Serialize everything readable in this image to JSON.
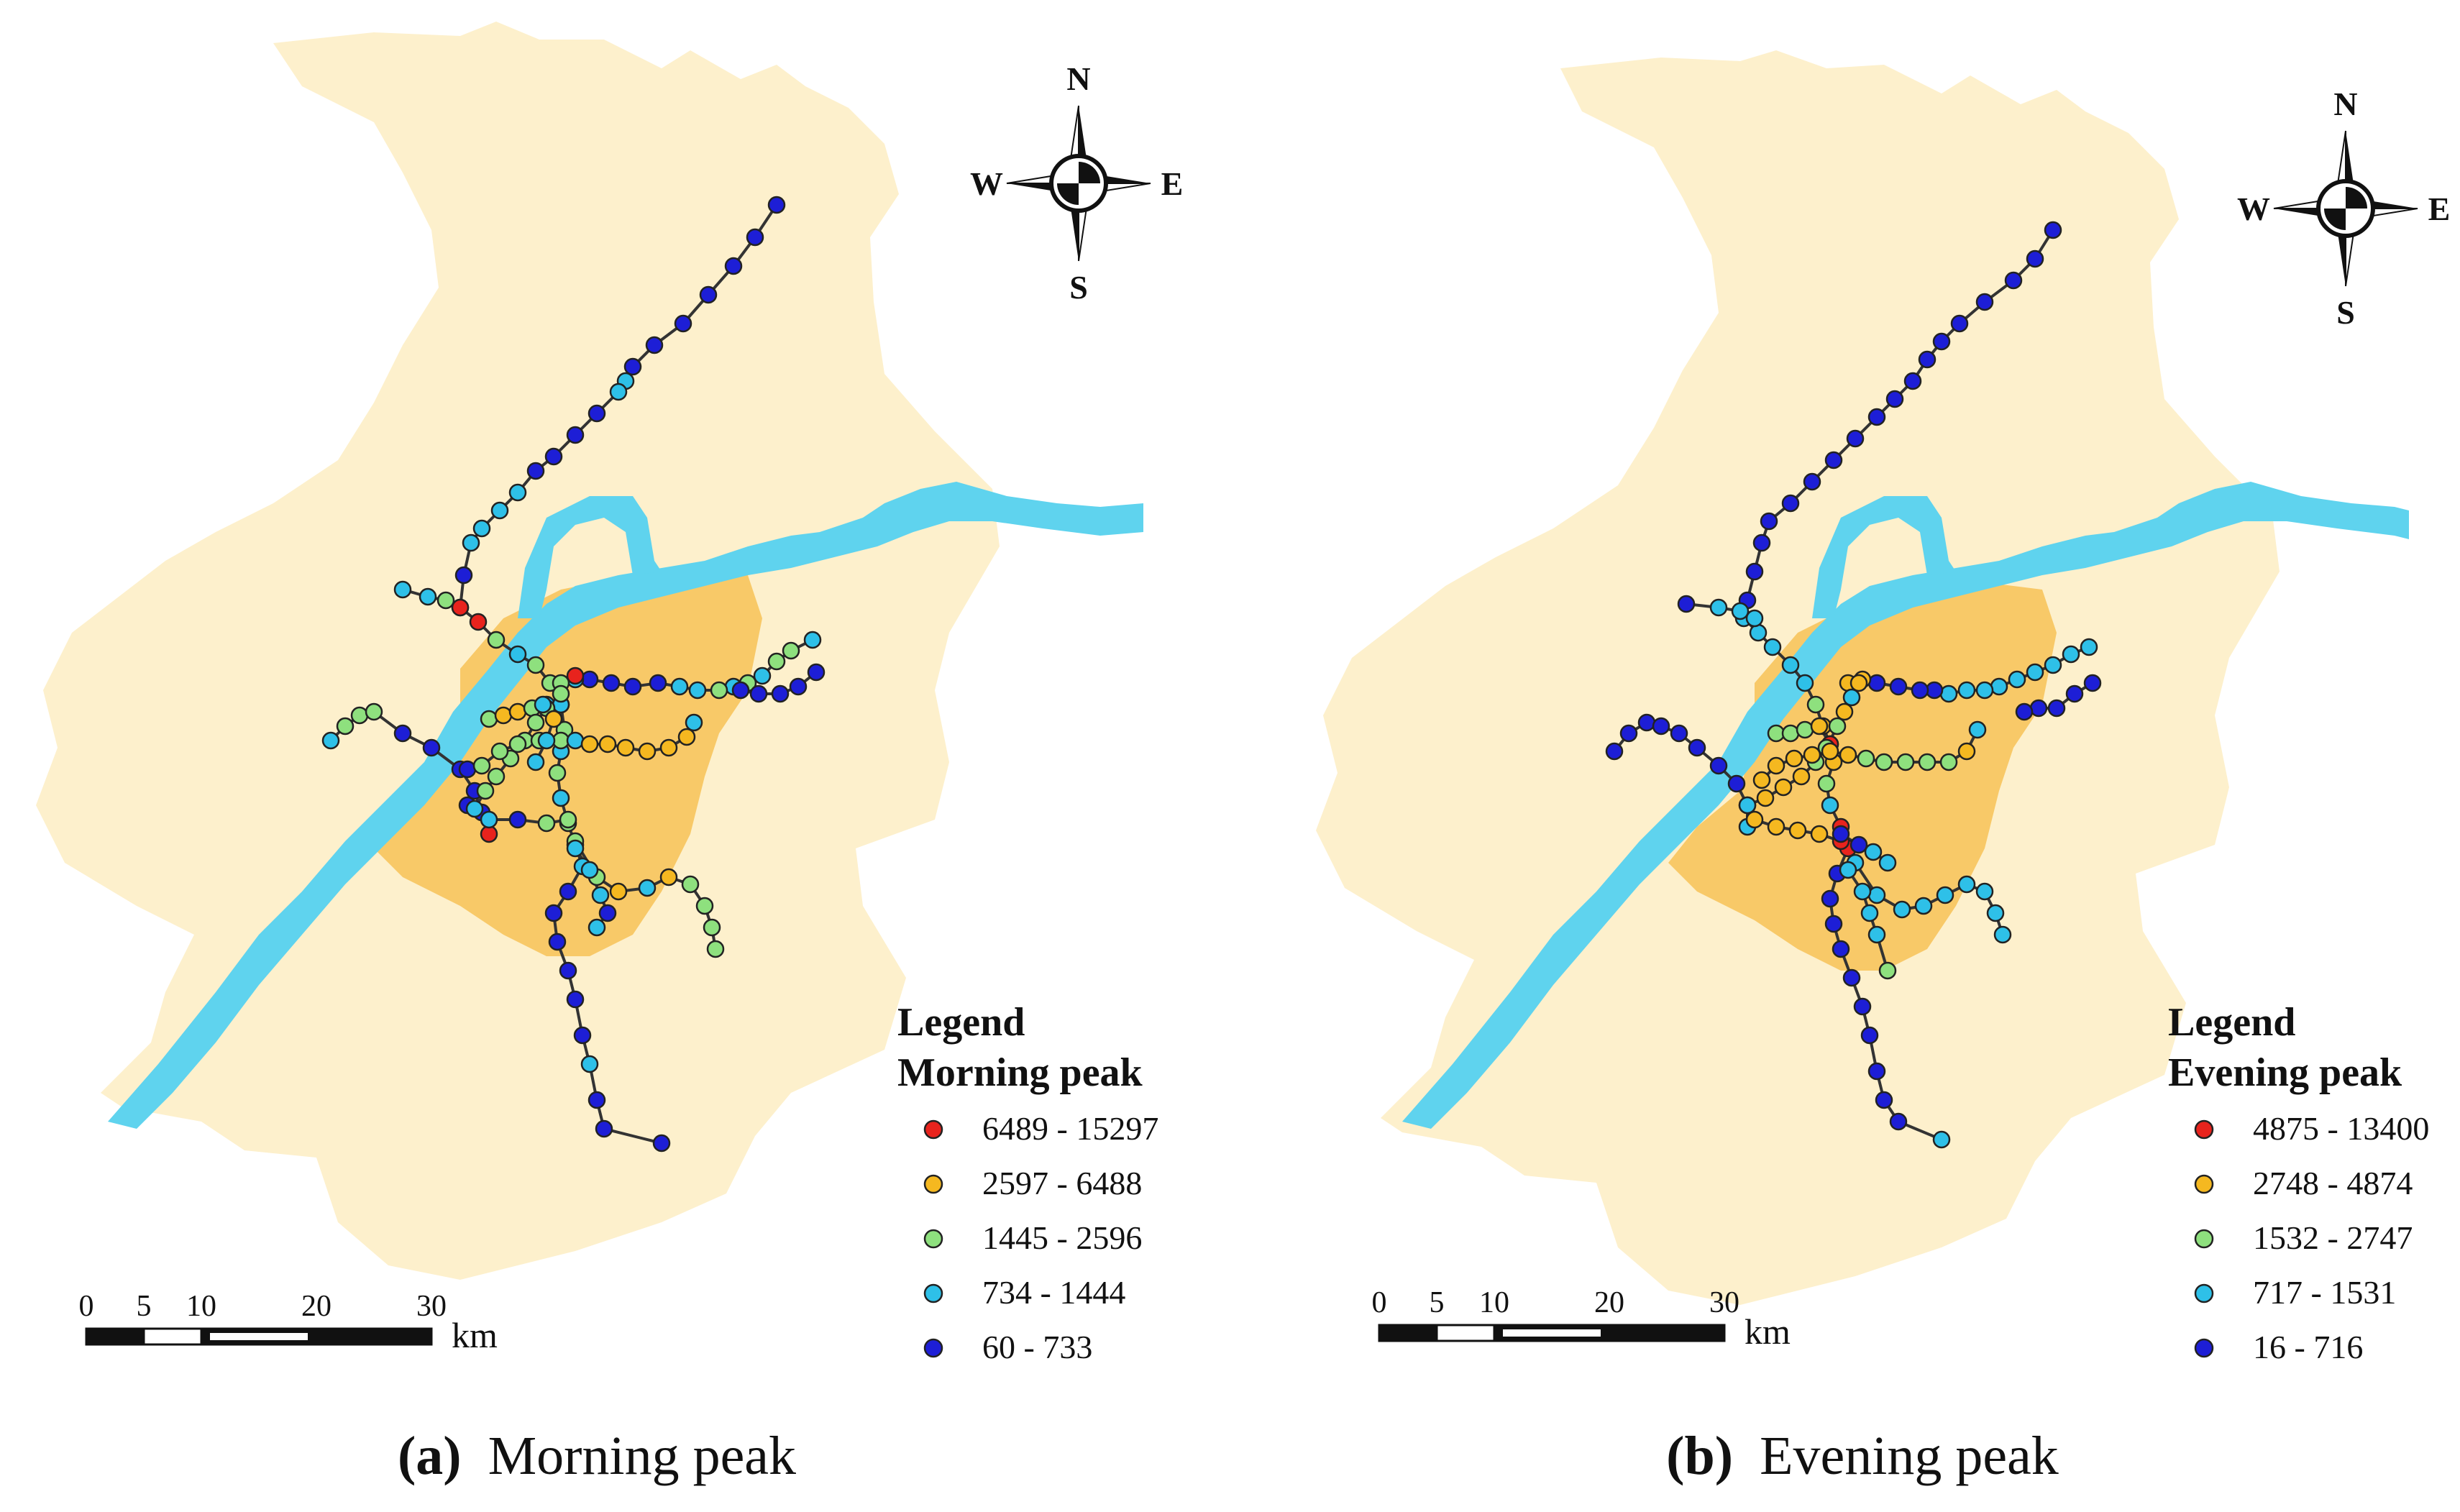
{
  "panels": [
    {
      "id": "a",
      "caption": {
        "letter": "(a)",
        "text": "Morning peak"
      },
      "legend": {
        "title": "Legend",
        "subtitle": "Morning peak",
        "classes": [
          {
            "label": "6489 - 15297",
            "color": "#e8231d"
          },
          {
            "label": "2597 - 6488",
            "color": "#f5b820"
          },
          {
            "label": "1445 - 2596",
            "color": "#8ee07e"
          },
          {
            "label": "734 - 1444",
            "color": "#2ec0e8"
          },
          {
            "label": "60 - 733",
            "color": "#1d1ed6"
          }
        ]
      },
      "scale_bar": {
        "ticks": [
          "0",
          "5",
          "10",
          "20",
          "30"
        ],
        "unit": "km"
      },
      "compass": {
        "n": "N",
        "s": "S",
        "e": "E",
        "w": "W"
      }
    },
    {
      "id": "b",
      "caption": {
        "letter": "(b)",
        "text": "Evening peak"
      },
      "legend": {
        "title": "Legend",
        "subtitle": "Evening peak",
        "classes": [
          {
            "label": "4875 - 13400",
            "color": "#e8231d"
          },
          {
            "label": "2748 - 4874",
            "color": "#f5b820"
          },
          {
            "label": "1532 - 2747",
            "color": "#8ee07e"
          },
          {
            "label": "717 - 1531",
            "color": "#2ec0e8"
          },
          {
            "label": "16 - 716",
            "color": "#1d1ed6"
          }
        ]
      },
      "scale_bar": {
        "ticks": [
          "0",
          "5",
          "10",
          "20",
          "30"
        ],
        "unit": "km"
      },
      "compass": {
        "n": "N",
        "s": "S",
        "e": "E",
        "w": "W"
      }
    }
  ],
  "colors": {
    "land": "#fdf0cc",
    "urban_core": "#f8c968",
    "river": "#5fd3ee",
    "line": "#333333"
  }
}
